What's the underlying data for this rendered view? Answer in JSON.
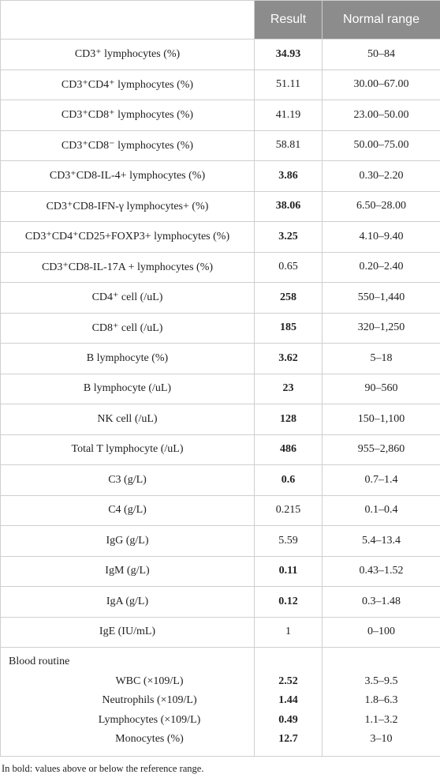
{
  "table": {
    "header": [
      "Result",
      "Normal range"
    ],
    "rows": [
      [
        "CD3⁺ lymphocytes (%)",
        "34.93",
        "50–84"
      ],
      [
        "CD3⁺CD4⁺ lymphocytes (%)",
        "51.11",
        "30.00–67.00"
      ],
      [
        "CD3⁺CD8⁺ lymphocytes (%)",
        "41.19",
        "23.00–50.00"
      ],
      [
        "CD3⁺CD8⁻ lymphocytes (%)",
        "58.81",
        "50.00–75.00"
      ],
      [
        "CD3⁺CD8-IL-4+ lymphocytes (%)",
        "3.86",
        "0.30–2.20"
      ],
      [
        "CD3⁺CD8-IFN-γ lymphocytes+ (%)",
        "38.06",
        "6.50–28.00"
      ],
      [
        "CD3⁺CD4⁺CD25+FOXP3+ lymphocytes (%)",
        "3.25",
        "4.10–9.40"
      ],
      [
        "CD3⁺CD8-IL-17A + lymphocytes (%)",
        "0.65",
        "0.20–2.40"
      ],
      [
        "CD4⁺ cell (/uL)",
        "258",
        "550–1,440"
      ],
      [
        "CD8⁺ cell (/uL)",
        "185",
        "320–1,250"
      ],
      [
        "B lymphocyte (%)",
        "3.62",
        "5–18"
      ],
      [
        "B lymphocyte (/uL)",
        "23",
        "90–560"
      ],
      [
        "NK cell (/uL)",
        "128",
        "150–1,100"
      ],
      [
        "Total T lymphocyte (/uL)",
        "486",
        "955–2,860"
      ],
      [
        "C3 (g/L)",
        "0.6",
        "0.7–1.4"
      ],
      [
        "C4 (g/L)",
        "0.215",
        "0.1–0.4"
      ],
      [
        "IgG (g/L)",
        "5.59",
        "5.4–13.4"
      ],
      [
        "IgM (g/L)",
        "0.11",
        "0.43–1.52"
      ],
      [
        "IgA (g/L)",
        "0.12",
        "0.3–1.48"
      ],
      [
        "IgE (IU/mL)",
        "1",
        "0–100"
      ]
    ],
    "blood_routine": {
      "label": "Blood routine",
      "rows": [
        [
          "WBC (×109/L)",
          "2.52",
          "3.5–9.5"
        ],
        [
          "Neutrophils (×109/L)",
          "1.44",
          "1.8–6.3"
        ],
        [
          "Lymphocytes (×109/L)",
          "0.49",
          "1.1–3.2"
        ],
        [
          "Monocytes (%)",
          "12.7",
          "3–10"
        ]
      ]
    }
  },
  "footnote": "In bold: values above or below the reference range."
}
